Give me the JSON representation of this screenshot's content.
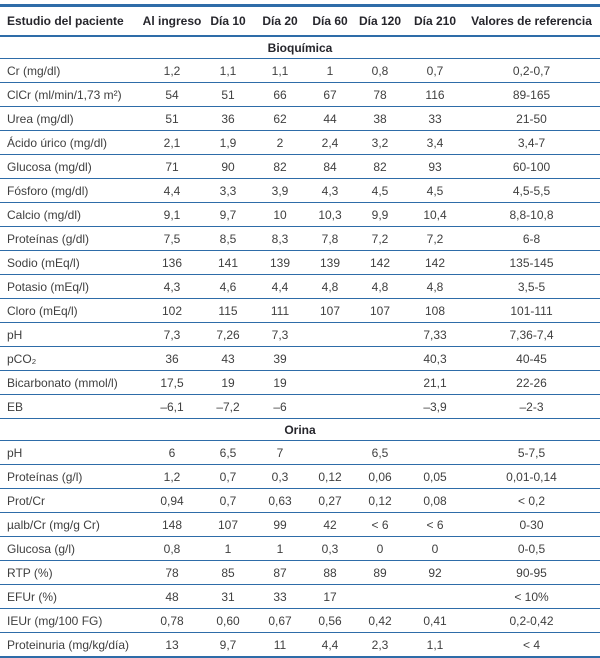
{
  "table": {
    "columns": [
      "Estudio del paciente",
      "Al ingreso",
      "Día 10",
      "Día 20",
      "Día 60",
      "Día 120",
      "Día 210",
      "Valores de referencia"
    ],
    "sections": [
      {
        "title": "Bioquímica",
        "rows": [
          {
            "label": "Cr (mg/dl)",
            "values": [
              "1,2",
              "1,1",
              "1,1",
              "1",
              "0,8",
              "0,7"
            ],
            "reference": "0,2-0,7"
          },
          {
            "label": "ClCr (ml/min/1,73 m²)",
            "values": [
              "54",
              "51",
              "66",
              "67",
              "78",
              "116"
            ],
            "reference": "89-165"
          },
          {
            "label": "Urea (mg/dl)",
            "values": [
              "51",
              "36",
              "62",
              "44",
              "38",
              "33"
            ],
            "reference": "21-50"
          },
          {
            "label": "Ácido úrico (mg/dl)",
            "values": [
              "2,1",
              "1,9",
              "2",
              "2,4",
              "3,2",
              "3,4"
            ],
            "reference": "3,4-7"
          },
          {
            "label": "Glucosa (mg/dl)",
            "values": [
              "71",
              "90",
              "82",
              "84",
              "82",
              "93"
            ],
            "reference": "60-100"
          },
          {
            "label": "Fósforo (mg/dl)",
            "values": [
              "4,4",
              "3,3",
              "3,9",
              "4,3",
              "4,5",
              "4,5"
            ],
            "reference": "4,5-5,5"
          },
          {
            "label": "Calcio (mg/dl)",
            "values": [
              "9,1",
              "9,7",
              "10",
              "10,3",
              "9,9",
              "10,4"
            ],
            "reference": "8,8-10,8"
          },
          {
            "label": "Proteínas (g/dl)",
            "values": [
              "7,5",
              "8,5",
              "8,3",
              "7,8",
              "7,2",
              "7,2"
            ],
            "reference": "6-8"
          },
          {
            "label": "Sodio (mEq/l)",
            "values": [
              "136",
              "141",
              "139",
              "139",
              "142",
              "142"
            ],
            "reference": "135-145"
          },
          {
            "label": "Potasio (mEq/l)",
            "values": [
              "4,3",
              "4,6",
              "4,4",
              "4,8",
              "4,8",
              "4,8"
            ],
            "reference": "3,5-5"
          },
          {
            "label": "Cloro (mEq/l)",
            "values": [
              "102",
              "115",
              "111",
              "107",
              "107",
              "108"
            ],
            "reference": "101-111"
          },
          {
            "label": "pH",
            "values": [
              "7,3",
              "7,26",
              "7,3",
              "",
              "",
              "7,33"
            ],
            "reference": "7,36-7,4"
          },
          {
            "label": "pCO₂",
            "values": [
              "36",
              "43",
              "39",
              "",
              "",
              "40,3"
            ],
            "reference": "40-45"
          },
          {
            "label": "Bicarbonato (mmol/l)",
            "values": [
              "17,5",
              "19",
              "19",
              "",
              "",
              "21,1"
            ],
            "reference": "22-26"
          },
          {
            "label": "EB",
            "values": [
              "–6,1",
              "–7,2",
              "–6",
              "",
              "",
              "–3,9"
            ],
            "reference": "–2-3"
          }
        ]
      },
      {
        "title": "Orina",
        "rows": [
          {
            "label": "pH",
            "values": [
              "6",
              "6,5",
              "7",
              "",
              "6,5",
              ""
            ],
            "reference": "5-7,5"
          },
          {
            "label": "Proteínas (g/l)",
            "values": [
              "1,2",
              "0,7",
              "0,3",
              "0,12",
              "0,06",
              "0,05"
            ],
            "reference": "0,01-0,14"
          },
          {
            "label": "Prot/Cr",
            "values": [
              "0,94",
              "0,7",
              "0,63",
              "0,27",
              "0,12",
              "0,08"
            ],
            "reference": "< 0,2"
          },
          {
            "label": "µalb/Cr (mg/g Cr)",
            "values": [
              "148",
              "107",
              "99",
              "42",
              "< 6",
              "< 6"
            ],
            "reference": "0-30"
          },
          {
            "label": "Glucosa (g/l)",
            "values": [
              "0,8",
              "1",
              "1",
              "0,3",
              "0",
              "0"
            ],
            "reference": "0-0,5"
          },
          {
            "label": "RTP (%)",
            "values": [
              "78",
              "85",
              "87",
              "88",
              "89",
              "92"
            ],
            "reference": "90-95"
          },
          {
            "label": "EFUr (%)",
            "values": [
              "48",
              "31",
              "33",
              "17",
              "",
              ""
            ],
            "reference": "< 10%"
          },
          {
            "label": "IEUr (mg/100 FG)",
            "values": [
              "0,78",
              "0,60",
              "0,67",
              "0,56",
              "0,42",
              "0,41"
            ],
            "reference": "0,2-0,42"
          },
          {
            "label": "Proteinuria (mg/kg/día)",
            "values": [
              "13",
              "9,7",
              "11",
              "4,4",
              "2,3",
              "1,1"
            ],
            "reference": "< 4"
          }
        ]
      }
    ]
  },
  "colors": {
    "rule_blue": "#2e6ca8",
    "body_text": "#3f3f3f",
    "header_text": "#26262c"
  }
}
